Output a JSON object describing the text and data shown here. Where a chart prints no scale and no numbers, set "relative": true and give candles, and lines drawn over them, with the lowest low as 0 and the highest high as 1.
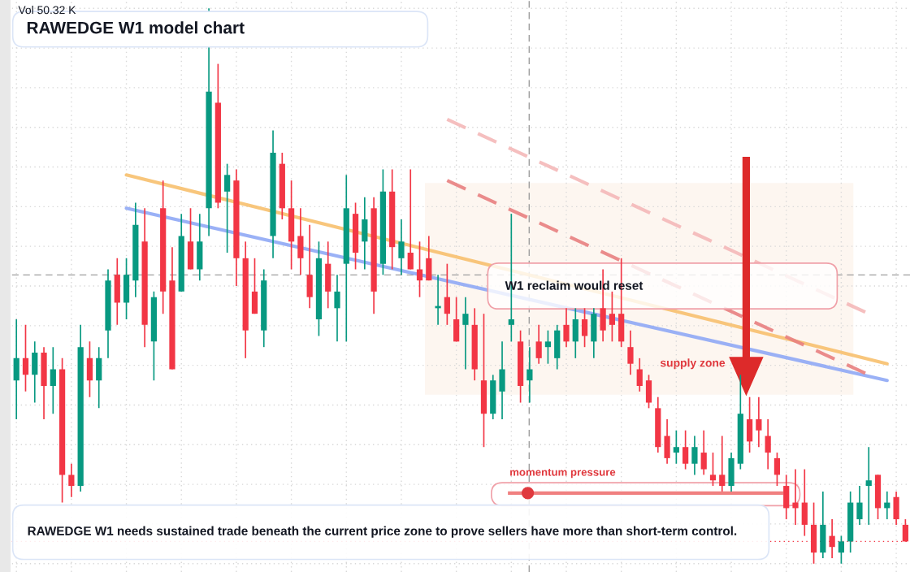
{
  "chart_data": {
    "type": "candlestick",
    "title": "RAWEDGE W1 model chart",
    "relative": true,
    "categories": [
      null,
      null,
      null,
      null,
      null,
      null,
      null,
      null,
      null,
      null,
      null,
      null,
      null,
      null,
      null,
      null,
      null,
      null,
      null,
      null,
      null,
      null,
      null,
      null,
      null,
      null,
      null,
      null,
      null,
      null,
      null,
      null,
      null,
      null,
      null,
      null,
      null,
      null,
      null,
      null,
      null,
      null,
      null,
      null,
      null,
      null,
      null,
      null,
      null,
      null,
      null,
      null,
      null,
      null,
      null,
      null,
      null,
      null,
      null,
      null,
      null,
      null,
      null,
      null,
      null,
      null,
      null,
      null,
      null,
      null,
      null,
      null,
      null,
      null,
      null,
      null,
      null,
      null,
      null,
      null,
      null,
      null,
      null,
      null,
      null,
      null,
      null,
      null,
      null,
      null,
      null,
      null,
      null,
      null,
      null,
      null,
      null,
      null
    ],
    "ohlc": [
      [
        0.33,
        0.44,
        0.26,
        0.37
      ],
      [
        0.37,
        0.43,
        0.31,
        0.34
      ],
      [
        0.34,
        0.4,
        0.29,
        0.38
      ],
      [
        0.38,
        0.39,
        0.26,
        0.32
      ],
      [
        0.32,
        0.39,
        0.27,
        0.35
      ],
      [
        0.35,
        0.37,
        0.11,
        0.16
      ],
      [
        0.16,
        0.18,
        0.12,
        0.14
      ],
      [
        0.14,
        0.43,
        0.13,
        0.39
      ],
      [
        0.37,
        0.4,
        0.3,
        0.33
      ],
      [
        0.33,
        0.39,
        0.28,
        0.37
      ],
      [
        0.42,
        0.53,
        0.37,
        0.51
      ],
      [
        0.52,
        0.55,
        0.43,
        0.47
      ],
      [
        0.47,
        0.55,
        0.44,
        0.52
      ],
      [
        0.51,
        0.65,
        0.48,
        0.61
      ],
      [
        0.58,
        0.64,
        0.39,
        0.43
      ],
      [
        0.4,
        0.49,
        0.33,
        0.48
      ],
      [
        0.64,
        0.69,
        0.45,
        0.49
      ],
      [
        0.51,
        0.57,
        0.35,
        0.35
      ],
      [
        0.49,
        0.63,
        0.49,
        0.59
      ],
      [
        0.58,
        0.64,
        0.53,
        0.53
      ],
      [
        0.53,
        0.63,
        0.51,
        0.58
      ],
      [
        0.64,
        1.0,
        0.59,
        0.85
      ],
      [
        0.83,
        0.9,
        0.64,
        0.65
      ],
      [
        0.67,
        0.72,
        0.56,
        0.7
      ],
      [
        0.69,
        0.71,
        0.5,
        0.55
      ],
      [
        0.55,
        0.58,
        0.37,
        0.42
      ],
      [
        0.49,
        0.55,
        0.45,
        0.45
      ],
      [
        0.42,
        0.53,
        0.39,
        0.51
      ],
      [
        0.59,
        0.78,
        0.55,
        0.74
      ],
      [
        0.72,
        0.74,
        0.62,
        0.64
      ],
      [
        0.64,
        0.69,
        0.53,
        0.58
      ],
      [
        0.59,
        0.64,
        0.52,
        0.55
      ],
      [
        0.52,
        0.61,
        0.46,
        0.48
      ],
      [
        0.44,
        0.58,
        0.41,
        0.55
      ],
      [
        0.54,
        0.58,
        0.46,
        0.49
      ],
      [
        0.46,
        0.52,
        0.4,
        0.49
      ],
      [
        0.54,
        0.7,
        0.4,
        0.64
      ],
      [
        0.63,
        0.65,
        0.53,
        0.56
      ],
      [
        0.58,
        0.66,
        0.53,
        0.62
      ],
      [
        0.64,
        0.66,
        0.45,
        0.49
      ],
      [
        0.54,
        0.71,
        0.52,
        0.67
      ],
      [
        0.67,
        0.71,
        0.53,
        0.57
      ],
      [
        0.55,
        0.62,
        0.52,
        0.58
      ],
      [
        0.56,
        0.71,
        0.53,
        0.53
      ],
      [
        0.53,
        0.58,
        0.48,
        0.51
      ],
      [
        0.55,
        0.59,
        0.51,
        0.51
      ],
      [
        0.46,
        0.52,
        0.43,
        0.46
      ],
      [
        0.48,
        0.54,
        0.43,
        0.45
      ],
      [
        0.44,
        0.48,
        0.4,
        0.4
      ],
      [
        0.43,
        0.48,
        0.35,
        0.45
      ],
      [
        0.43,
        0.46,
        0.33,
        0.35
      ],
      [
        0.33,
        0.45,
        0.21,
        0.27
      ],
      [
        0.27,
        0.34,
        0.26,
        0.33
      ],
      [
        0.31,
        0.4,
        0.26,
        0.35
      ],
      [
        0.43,
        0.63,
        0.4,
        0.44
      ],
      [
        0.4,
        0.42,
        0.29,
        0.32
      ],
      [
        0.33,
        0.39,
        0.29,
        0.35
      ],
      [
        0.4,
        0.43,
        0.36,
        0.37
      ],
      [
        0.39,
        0.42,
        0.36,
        0.4
      ],
      [
        0.37,
        0.43,
        0.35,
        0.42
      ],
      [
        0.43,
        0.46,
        0.39,
        0.4
      ],
      [
        0.4,
        0.46,
        0.37,
        0.44
      ],
      [
        0.44,
        0.46,
        0.39,
        0.41
      ],
      [
        0.4,
        0.46,
        0.37,
        0.45
      ],
      [
        0.46,
        0.53,
        0.4,
        0.42
      ],
      [
        0.45,
        0.49,
        0.4,
        0.43
      ],
      [
        0.45,
        0.55,
        0.39,
        0.4
      ],
      [
        0.39,
        0.42,
        0.34,
        0.36
      ],
      [
        0.35,
        0.37,
        0.31,
        0.32
      ],
      [
        0.33,
        0.34,
        0.28,
        0.29
      ],
      [
        0.28,
        0.3,
        0.2,
        0.21
      ],
      [
        0.23,
        0.26,
        0.18,
        0.19
      ],
      [
        0.2,
        0.24,
        0.18,
        0.21
      ],
      [
        0.21,
        0.24,
        0.17,
        0.18
      ],
      [
        0.18,
        0.23,
        0.16,
        0.21
      ],
      [
        0.2,
        0.24,
        0.16,
        0.17
      ],
      [
        0.16,
        0.2,
        0.14,
        0.15
      ],
      [
        0.16,
        0.23,
        0.13,
        0.14
      ],
      [
        0.14,
        0.2,
        0.13,
        0.19
      ],
      [
        0.18,
        0.34,
        0.17,
        0.27
      ],
      [
        0.26,
        0.3,
        0.2,
        0.22
      ],
      [
        0.26,
        0.3,
        0.21,
        0.24
      ],
      [
        0.23,
        0.26,
        0.17,
        0.2
      ],
      [
        0.19,
        0.2,
        0.14,
        0.16
      ],
      [
        0.14,
        0.16,
        0.08,
        0.1
      ],
      [
        0.11,
        0.17,
        0.07,
        0.1
      ],
      [
        0.11,
        0.17,
        0.05,
        0.07
      ],
      [
        0.07,
        0.11,
        0.0,
        0.02
      ],
      [
        0.02,
        0.13,
        0.01,
        0.07
      ],
      [
        0.05,
        0.08,
        0.01,
        0.03
      ],
      [
        0.02,
        0.05,
        0.0,
        0.04
      ],
      [
        0.04,
        0.13,
        0.02,
        0.11
      ],
      [
        0.08,
        0.14,
        0.07,
        0.11
      ],
      [
        0.14,
        0.21,
        0.07,
        0.15
      ],
      [
        0.16,
        0.16,
        0.08,
        0.1
      ],
      [
        0.1,
        0.13,
        0.08,
        0.11
      ],
      [
        0.12,
        0.13,
        0.07,
        0.08
      ],
      [
        0.07,
        0.08,
        0.04,
        0.04
      ]
    ],
    "series": [
      {
        "type": "line",
        "color": "#f7c06e",
        "values": [
          null,
          null,
          null,
          null,
          null,
          null,
          null,
          null,
          null,
          null,
          null,
          null,
          0.7,
          null,
          null,
          null,
          null,
          null,
          null,
          null,
          null,
          null,
          null,
          null,
          null,
          null,
          null,
          null,
          null,
          null,
          null,
          null,
          null,
          null,
          null,
          null,
          null,
          null,
          null,
          null,
          null,
          null,
          null,
          null,
          null,
          null,
          null,
          null,
          null,
          null,
          null,
          null,
          null,
          null,
          null,
          null,
          null,
          null,
          null,
          null,
          null,
          null,
          null,
          null,
          null,
          null,
          null,
          null,
          null,
          null,
          null,
          null,
          null,
          null,
          null,
          null,
          null,
          null,
          null,
          null,
          null,
          null,
          null,
          null,
          null,
          null,
          null,
          null,
          null,
          null,
          null,
          null,
          null,
          null,
          null,
          0.36,
          null,
          null
        ]
      },
      {
        "type": "line",
        "color": "#8fa8f5",
        "values": [
          null,
          null,
          null,
          null,
          null,
          null,
          null,
          null,
          null,
          null,
          null,
          null,
          0.64,
          null,
          null,
          null,
          null,
          null,
          null,
          null,
          null,
          null,
          null,
          null,
          null,
          null,
          null,
          null,
          null,
          null,
          null,
          null,
          null,
          null,
          null,
          null,
          null,
          null,
          null,
          null,
          null,
          null,
          null,
          null,
          null,
          null,
          null,
          null,
          null,
          null,
          null,
          null,
          null,
          null,
          null,
          null,
          null,
          null,
          null,
          null,
          null,
          null,
          null,
          null,
          null,
          null,
          null,
          null,
          null,
          null,
          null,
          null,
          null,
          null,
          null,
          null,
          null,
          null,
          null,
          null,
          null,
          null,
          null,
          null,
          null,
          null,
          null,
          null,
          null,
          null,
          null,
          null,
          null,
          null,
          null,
          0.33,
          null,
          null
        ]
      },
      {
        "type": "line",
        "color": "#e88080",
        "line_style": "dashed",
        "values": [
          null,
          null,
          null,
          null,
          null,
          null,
          null,
          null,
          null,
          null,
          null,
          null,
          null,
          null,
          null,
          null,
          null,
          null,
          null,
          null,
          null,
          null,
          null,
          null,
          null,
          null,
          null,
          null,
          null,
          null,
          null,
          null,
          null,
          null,
          null,
          null,
          null,
          null,
          null,
          null,
          null,
          null,
          null,
          null,
          null,
          null,
          null,
          0.69,
          null,
          null,
          null,
          null,
          null,
          null,
          null,
          null,
          null,
          null,
          null,
          null,
          null,
          null,
          null,
          null,
          null,
          null,
          null,
          null,
          null,
          null,
          null,
          null,
          null,
          null,
          null,
          null,
          null,
          null,
          null,
          null,
          null,
          null,
          null,
          null,
          null,
          null,
          null,
          null,
          null,
          null,
          null,
          null,
          null,
          0.34,
          null,
          null,
          null,
          null
        ]
      },
      {
        "type": "line",
        "color": "#f4b8b8",
        "line_style": "dashed",
        "values": [
          null,
          null,
          null,
          null,
          null,
          null,
          null,
          null,
          null,
          null,
          null,
          null,
          null,
          null,
          null,
          null,
          null,
          null,
          null,
          null,
          null,
          null,
          null,
          null,
          null,
          null,
          null,
          null,
          null,
          null,
          null,
          null,
          null,
          null,
          null,
          null,
          null,
          null,
          null,
          null,
          null,
          null,
          null,
          null,
          null,
          null,
          null,
          0.8,
          null,
          null,
          null,
          null,
          null,
          null,
          null,
          null,
          null,
          null,
          null,
          null,
          null,
          null,
          null,
          null,
          null,
          null,
          null,
          null,
          null,
          null,
          null,
          null,
          null,
          null,
          null,
          null,
          null,
          null,
          null,
          null,
          null,
          null,
          null,
          null,
          null,
          null,
          null,
          null,
          null,
          null,
          null,
          null,
          null,
          0.45,
          null,
          null,
          null,
          null
        ]
      }
    ],
    "ref_lines": [
      {
        "axis": "y",
        "value": 0.52,
        "color": "#9e9e9e",
        "line_style": "dashed"
      },
      {
        "axis": "y",
        "value": 0.04,
        "color": "#f23645",
        "line_style": "dotted"
      }
    ],
    "grid": true,
    "annotations": [
      "Vol 50.32 K",
      "W1 reclaim would reset",
      "supply zone",
      "momentum pressure",
      "RAWEDGE W1 needs sustained trade beneath the current price zone to prove sellers have more than short-term control."
    ]
  }
}
